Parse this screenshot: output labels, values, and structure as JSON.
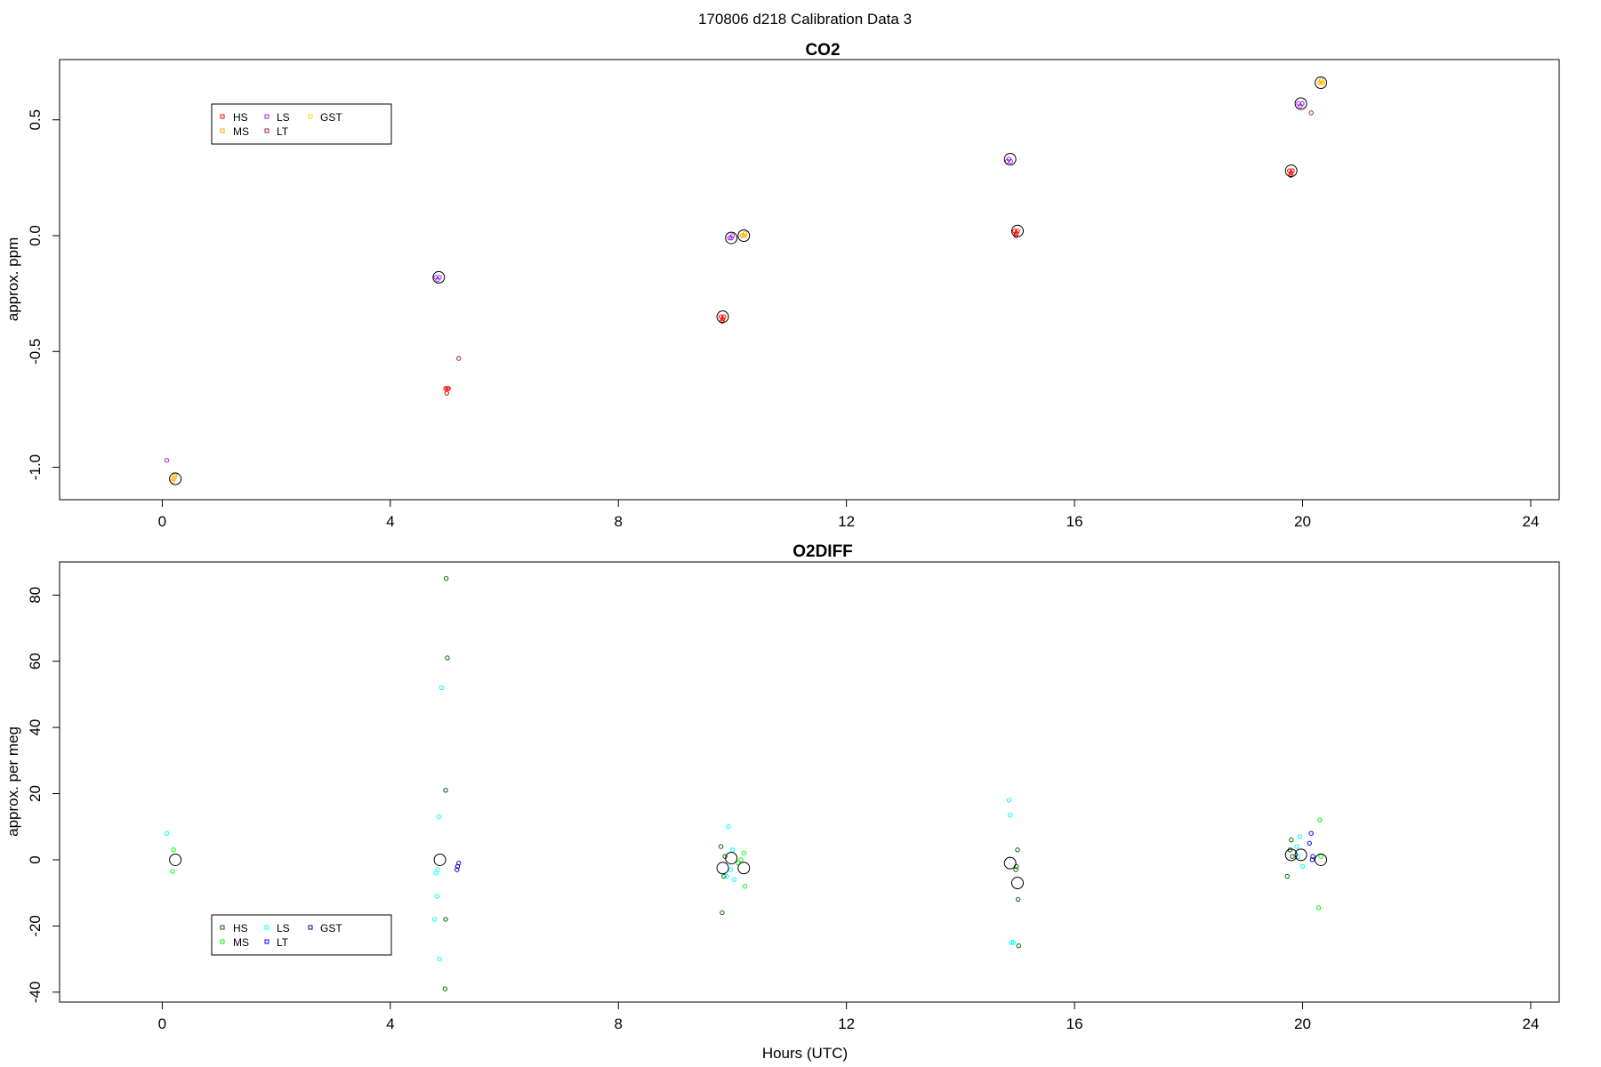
{
  "figure": {
    "title": "170806   d218   Calibration Data 3",
    "xlabel": "Hours (UTC)"
  },
  "chart_data": [
    {
      "type": "scatter",
      "title": "CO2",
      "xlabel": "",
      "ylabel": "approx. ppm",
      "xlim": [
        -1.8,
        24.5
      ],
      "ylim": [
        -1.14,
        0.76
      ],
      "xticks": [
        0,
        4,
        8,
        12,
        16,
        20,
        24
      ],
      "yticks": [
        -1.0,
        -0.5,
        0.0,
        0.5
      ],
      "ytick_labels": [
        "-1.0",
        "-0.5",
        "0.0",
        "0.5"
      ],
      "grid": false,
      "legend": {
        "placement": "top-left",
        "entries": [
          {
            "label": "HS",
            "color": "#ff0000"
          },
          {
            "label": "MS",
            "color": "#ffa500"
          },
          {
            "label": "LS",
            "color": "#a020f0"
          },
          {
            "label": "LT",
            "color": "#b22222"
          },
          {
            "label": "GST",
            "color": "#ffd700"
          }
        ]
      },
      "series": [
        {
          "name": "HS",
          "color": "#ff0000",
          "points": [
            [
              4.97,
              -0.66
            ],
            [
              5.0,
              -0.66
            ],
            [
              5.02,
              -0.66
            ],
            [
              4.99,
              -0.68
            ],
            [
              9.8,
              -0.35
            ],
            [
              9.83,
              -0.36
            ],
            [
              9.85,
              -0.35
            ],
            [
              9.82,
              -0.37
            ],
            [
              14.95,
              0.02
            ],
            [
              14.98,
              0.01
            ],
            [
              15.0,
              0.02
            ],
            [
              14.97,
              0.0
            ],
            [
              19.77,
              0.28
            ],
            [
              19.8,
              0.27
            ],
            [
              19.82,
              0.28
            ],
            [
              19.79,
              0.26
            ]
          ]
        },
        {
          "name": "MS",
          "color": "#ffa500",
          "points": [
            [
              0.2,
              -1.05
            ],
            [
              0.18,
              -1.06
            ],
            [
              0.22,
              -1.04
            ],
            [
              10.17,
              0.0
            ],
            [
              10.2,
              0.0
            ],
            [
              10.22,
              0.01
            ],
            [
              20.3,
              0.66
            ],
            [
              20.33,
              0.67
            ],
            [
              20.35,
              0.66
            ]
          ]
        },
        {
          "name": "LS",
          "color": "#a020f0",
          "points": [
            [
              0.08,
              -0.97
            ],
            [
              4.8,
              -0.18
            ],
            [
              4.83,
              -0.19
            ],
            [
              4.86,
              -0.18
            ],
            [
              9.95,
              -0.01
            ],
            [
              9.98,
              -0.01
            ],
            [
              10.0,
              0.0
            ],
            [
              14.82,
              0.32
            ],
            [
              14.85,
              0.33
            ],
            [
              14.88,
              0.32
            ],
            [
              19.93,
              0.57
            ],
            [
              19.96,
              0.56
            ],
            [
              19.99,
              0.57
            ]
          ]
        },
        {
          "name": "LT",
          "color": "#b22222",
          "points": [
            [
              5.2,
              -0.53
            ],
            [
              20.15,
              0.53
            ]
          ]
        },
        {
          "name": "GST",
          "color": "#ffd700",
          "points": [
            [
              0.22,
              -1.03
            ],
            [
              10.22,
              0.0
            ],
            [
              20.33,
              0.66
            ]
          ]
        }
      ],
      "means": [
        [
          0.23,
          -1.05
        ],
        [
          4.85,
          -0.18
        ],
        [
          9.83,
          -0.35
        ],
        [
          9.98,
          -0.01
        ],
        [
          10.2,
          0.0
        ],
        [
          14.87,
          0.33
        ],
        [
          15.0,
          0.02
        ],
        [
          19.8,
          0.28
        ],
        [
          19.97,
          0.57
        ],
        [
          20.32,
          0.66
        ]
      ],
      "means_color": "#000000"
    },
    {
      "type": "scatter",
      "title": "O2DIFF",
      "xlabel": "Hours (UTC)",
      "ylabel": "approx. per meg",
      "xlim": [
        -1.8,
        24.5
      ],
      "ylim": [
        -43,
        90
      ],
      "xticks": [
        0,
        4,
        8,
        12,
        16,
        20,
        24
      ],
      "yticks": [
        -40,
        -20,
        0,
        20,
        40,
        60,
        80
      ],
      "ytick_labels": [
        "-40",
        "-20",
        "0",
        "20",
        "40",
        "60",
        "80"
      ],
      "grid": false,
      "legend": {
        "placement": "bottom-left",
        "entries": [
          {
            "label": "HS",
            "color": "#006400"
          },
          {
            "label": "MS",
            "color": "#00ff00"
          },
          {
            "label": "LS",
            "color": "#00ffff"
          },
          {
            "label": "LT",
            "color": "#0000ff"
          },
          {
            "label": "GST",
            "color": "#00008b"
          }
        ]
      },
      "series": [
        {
          "name": "HS",
          "color": "#006400",
          "points": [
            [
              4.98,
              85
            ],
            [
              5.0,
              61
            ],
            [
              4.97,
              21
            ],
            [
              4.97,
              -18
            ],
            [
              4.96,
              -39
            ],
            [
              9.8,
              4
            ],
            [
              9.85,
              -5
            ],
            [
              9.82,
              -16
            ],
            [
              9.87,
              1
            ],
            [
              15.0,
              3
            ],
            [
              14.98,
              -2
            ],
            [
              14.97,
              -3
            ],
            [
              15.01,
              -12
            ],
            [
              15.02,
              -26
            ],
            [
              19.73,
              -5
            ],
            [
              19.78,
              3
            ],
            [
              19.8,
              6
            ],
            [
              19.82,
              1
            ]
          ]
        },
        {
          "name": "MS",
          "color": "#00ff00",
          "points": [
            [
              0.2,
              3
            ],
            [
              0.18,
              -3.5
            ],
            [
              10.15,
              0
            ],
            [
              10.2,
              2
            ],
            [
              10.22,
              -8
            ],
            [
              10.1,
              -1
            ],
            [
              20.3,
              12
            ],
            [
              20.28,
              -14.5
            ],
            [
              20.32,
              1
            ]
          ]
        },
        {
          "name": "LS",
          "color": "#00ffff",
          "points": [
            [
              0.08,
              8
            ],
            [
              4.9,
              52
            ],
            [
              4.85,
              13
            ],
            [
              4.83,
              -3
            ],
            [
              4.8,
              -4
            ],
            [
              4.82,
              -11
            ],
            [
              4.78,
              -18
            ],
            [
              4.86,
              -30
            ],
            [
              9.9,
              -5
            ],
            [
              10.0,
              3
            ],
            [
              10.03,
              -6
            ],
            [
              9.93,
              10
            ],
            [
              9.97,
              -3
            ],
            [
              14.85,
              18
            ],
            [
              14.87,
              13.5
            ],
            [
              14.9,
              -25
            ],
            [
              14.93,
              -25
            ],
            [
              19.9,
              4
            ],
            [
              19.95,
              7
            ],
            [
              20.0,
              -2
            ],
            [
              19.92,
              1
            ]
          ]
        },
        {
          "name": "LT",
          "color": "#0000ff",
          "points": [
            [
              5.2,
              -1
            ],
            [
              5.17,
              -3
            ],
            [
              20.15,
              8
            ],
            [
              20.12,
              5
            ],
            [
              20.18,
              1
            ]
          ]
        },
        {
          "name": "GST",
          "color": "#00008b",
          "points": [
            [
              20.17,
              0
            ],
            [
              5.18,
              -2
            ]
          ]
        }
      ],
      "means": [
        [
          0.23,
          0
        ],
        [
          4.87,
          0
        ],
        [
          9.83,
          -2.5
        ],
        [
          9.98,
          0.5
        ],
        [
          10.2,
          -2.5
        ],
        [
          14.87,
          -1
        ],
        [
          15.0,
          -7
        ],
        [
          19.8,
          1.5
        ],
        [
          19.97,
          1.5
        ],
        [
          20.32,
          0
        ]
      ],
      "means_color": "#000000"
    }
  ]
}
